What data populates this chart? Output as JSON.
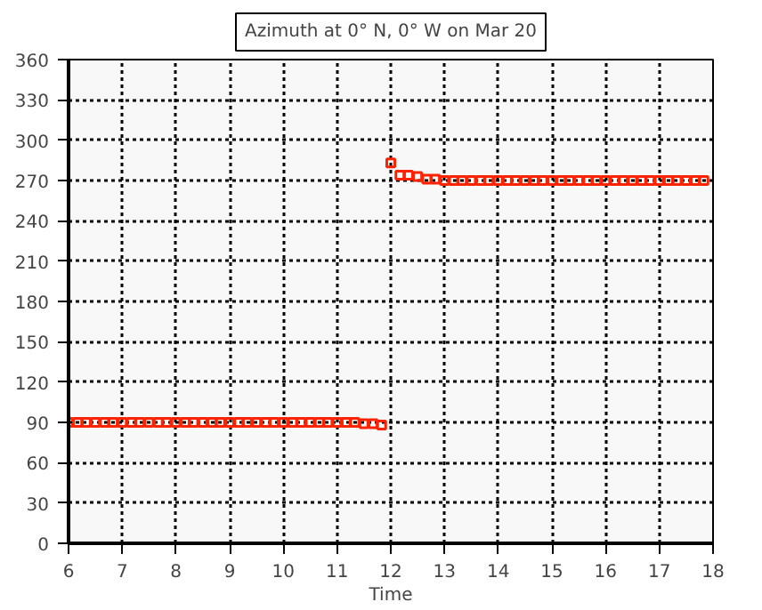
{
  "chart_data": {
    "type": "scatter",
    "title": "Azimuth at 0° N, 0° W on Mar 20",
    "xlabel": "Time",
    "x": [
      6,
      6.17,
      6.33,
      6.5,
      6.67,
      6.83,
      7,
      7.17,
      7.33,
      7.5,
      7.67,
      7.83,
      8,
      8.17,
      8.33,
      8.5,
      8.67,
      8.83,
      9,
      9.17,
      9.33,
      9.5,
      9.67,
      9.83,
      10,
      10.17,
      10.33,
      10.5,
      10.67,
      10.83,
      11,
      11.17,
      11.33,
      11.5,
      11.67,
      11.83,
      12,
      12.17,
      12.33,
      12.5,
      12.67,
      12.83,
      13,
      13.17,
      13.33,
      13.5,
      13.67,
      13.83,
      14,
      14.17,
      14.33,
      14.5,
      14.67,
      14.83,
      15,
      15.17,
      15.33,
      15.5,
      15.67,
      15.83,
      16,
      16.17,
      16.33,
      16.5,
      16.67,
      16.83,
      17,
      17.17,
      17.33,
      17.5,
      17.67,
      17.83
    ],
    "series": [
      {
        "color": "#ff2200",
        "values": [
          90,
          90,
          90,
          90,
          90,
          90,
          90,
          90,
          90,
          90,
          90,
          90,
          90,
          90,
          90,
          90,
          90,
          90,
          90,
          90,
          90,
          90,
          90,
          90,
          90,
          90,
          90,
          90,
          90,
          90,
          90,
          90,
          90,
          89,
          89,
          88,
          283,
          274,
          274,
          273,
          271,
          271,
          270,
          270,
          270,
          270,
          270,
          270,
          270,
          270,
          270,
          270,
          270,
          270,
          270,
          270,
          270,
          270,
          270,
          270,
          270,
          270,
          270,
          270,
          270,
          270,
          270,
          270,
          270,
          270,
          270,
          270
        ]
      }
    ],
    "xlim": [
      6,
      18
    ],
    "xticks": [
      6,
      7,
      8,
      9,
      10,
      11,
      12,
      13,
      14,
      15,
      16,
      17,
      18
    ],
    "ylim": [
      0,
      360
    ],
    "yticks": [
      0,
      30,
      60,
      90,
      120,
      150,
      180,
      210,
      240,
      270,
      300,
      330,
      360
    ],
    "grid": true,
    "marker": "square"
  }
}
